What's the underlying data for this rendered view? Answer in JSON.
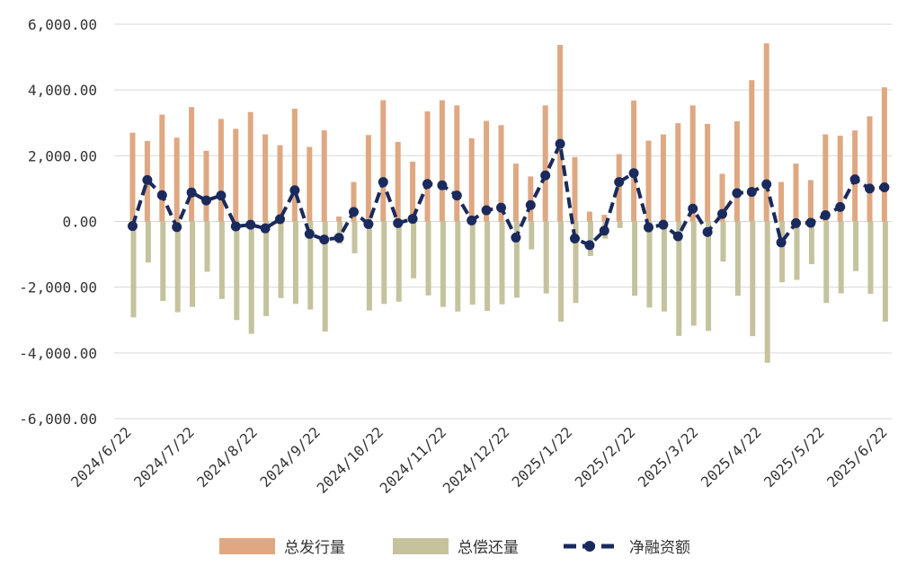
{
  "chart_data": {
    "type": "bar",
    "title": "",
    "xlabel": "",
    "ylabel": "",
    "ylim": [
      -6000,
      6000
    ],
    "yticks": [
      6000,
      4000,
      2000,
      0,
      -2000,
      -4000,
      -6000
    ],
    "ytick_labels": [
      "6,000.00",
      "4,000.00",
      "2,000.00",
      "0.00",
      "-2,000.00",
      "-4,000.00",
      "-6,000.00"
    ],
    "x_tick_labels": [
      "2024/6/22",
      "2024/7/22",
      "2024/8/22",
      "2024/9/22",
      "2024/10/22",
      "2024/11/22",
      "2024/12/22",
      "2025/1/22",
      "2025/2/22",
      "2025/3/22",
      "2025/4/22",
      "2025/5/22",
      "2025/6/22"
    ],
    "legend_position": "bottom",
    "colors": {
      "issuance": "#DFA882",
      "repayment": "#C5C39E",
      "net": "#1B2A5C",
      "grid": "#D9D9D9"
    },
    "series": [
      {
        "name": "总发行量",
        "kind": "bar",
        "values": [
          2700,
          2450,
          3250,
          2550,
          3480,
          2150,
          3120,
          2820,
          3330,
          2650,
          2320,
          3430,
          2270,
          2770,
          150,
          1200,
          2630,
          3690,
          2420,
          1820,
          3350,
          3690,
          3530,
          2530,
          3060,
          2930,
          1760,
          1370,
          3530,
          5370,
          1960,
          300,
          200,
          2050,
          3680,
          2460,
          2650,
          2990,
          3530,
          2970,
          1450,
          3050,
          4300,
          5420,
          1200,
          1760,
          1260,
          2650,
          2610,
          2770,
          3200,
          4080
        ]
      },
      {
        "name": "总偿还量",
        "kind": "bar",
        "values": [
          -2920,
          -1250,
          -2420,
          -2760,
          -2600,
          -1530,
          -2360,
          -3000,
          -3420,
          -2880,
          -2330,
          -2510,
          -2680,
          -3350,
          -680,
          -970,
          -2710,
          -2510,
          -2440,
          -1730,
          -2250,
          -2600,
          -2740,
          -2530,
          -2720,
          -2520,
          -2320,
          -850,
          -2190,
          -3050,
          -2480,
          -1050,
          -520,
          -200,
          -2260,
          -2620,
          -2740,
          -3480,
          -3170,
          -3330,
          -1220,
          -2260,
          -3490,
          -4300,
          -1850,
          -1780,
          -1300,
          -2480,
          -2190,
          -1510,
          -2200,
          -3050
        ]
      },
      {
        "name": "净融资额",
        "kind": "line",
        "values": [
          -140,
          1260,
          800,
          -170,
          880,
          640,
          790,
          -150,
          -100,
          -210,
          70,
          950,
          -380,
          -550,
          -500,
          290,
          -80,
          1200,
          -50,
          80,
          1140,
          1100,
          790,
          30,
          340,
          420,
          -490,
          500,
          1400,
          2360,
          -520,
          -720,
          -280,
          1200,
          1470,
          -180,
          -100,
          -450,
          390,
          -320,
          230,
          860,
          900,
          1130,
          -640,
          -50,
          -40,
          190,
          440,
          1280,
          1000,
          1040
        ]
      }
    ]
  }
}
